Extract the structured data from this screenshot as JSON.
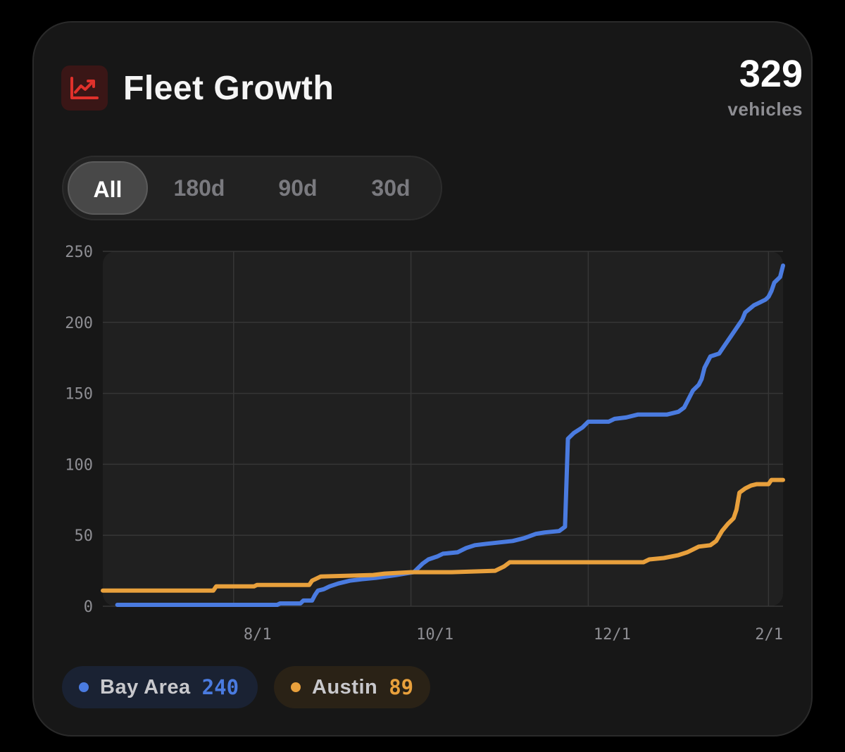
{
  "header": {
    "title": "Fleet Growth",
    "icon": "trend-chart-icon",
    "total_value": "329",
    "total_unit": "vehicles"
  },
  "range_selector": {
    "options": [
      "All",
      "180d",
      "90d",
      "30d"
    ],
    "selected": "All"
  },
  "legend": {
    "items": [
      {
        "name": "Bay Area",
        "value": "240",
        "color": "#4a7be0"
      },
      {
        "name": "Austin",
        "value": "89",
        "color": "#e8a03c"
      }
    ]
  },
  "colors": {
    "background": "#000000",
    "card": "#171717",
    "plot_area": "#202020",
    "grid": "#363636",
    "icon_accent": "#e0312b",
    "bay_area": "#4a7be0",
    "austin": "#e8a03c"
  },
  "chart_data": {
    "type": "line",
    "title": "Fleet Growth",
    "xlabel": "",
    "ylabel": "",
    "x_type": "date",
    "xlim": [
      "2025-06-17",
      "2026-02-06"
    ],
    "ylim": [
      0,
      250
    ],
    "y_ticks": [
      0,
      50,
      100,
      150,
      200,
      250
    ],
    "x_ticks": [
      {
        "date": "2025-08-01",
        "label": "8/1"
      },
      {
        "date": "2025-10-01",
        "label": "10/1"
      },
      {
        "date": "2025-12-01",
        "label": "12/1"
      },
      {
        "date": "2026-02-01",
        "label": "2/1"
      }
    ],
    "grid": true,
    "legend_position": "bottom-left",
    "series": [
      {
        "name": "Bay Area",
        "color": "#4a7be0",
        "step": true,
        "points": [
          [
            "2025-06-22",
            1
          ],
          [
            "2025-08-16",
            1
          ],
          [
            "2025-08-17",
            2
          ],
          [
            "2025-08-24",
            2
          ],
          [
            "2025-08-25",
            4
          ],
          [
            "2025-08-28",
            4
          ],
          [
            "2025-08-29",
            8
          ],
          [
            "2025-08-30",
            11
          ],
          [
            "2025-09-01",
            12
          ],
          [
            "2025-09-03",
            14
          ],
          [
            "2025-09-06",
            16
          ],
          [
            "2025-09-10",
            18
          ],
          [
            "2025-09-14",
            19
          ],
          [
            "2025-09-19",
            20
          ],
          [
            "2025-09-26",
            22
          ],
          [
            "2025-10-02",
            24
          ],
          [
            "2025-10-05",
            30
          ],
          [
            "2025-10-07",
            33
          ],
          [
            "2025-10-10",
            35
          ],
          [
            "2025-10-12",
            37
          ],
          [
            "2025-10-17",
            38
          ],
          [
            "2025-10-20",
            41
          ],
          [
            "2025-10-23",
            43
          ],
          [
            "2025-10-27",
            44
          ],
          [
            "2025-11-05",
            46
          ],
          [
            "2025-11-09",
            48
          ],
          [
            "2025-11-13",
            51
          ],
          [
            "2025-11-16",
            52
          ],
          [
            "2025-11-21",
            53
          ],
          [
            "2025-11-23",
            56
          ],
          [
            "2025-11-24",
            118
          ],
          [
            "2025-11-26",
            122
          ],
          [
            "2025-11-29",
            126
          ],
          [
            "2025-12-01",
            130
          ],
          [
            "2025-12-08",
            130
          ],
          [
            "2025-12-10",
            132
          ],
          [
            "2025-12-14",
            133
          ],
          [
            "2025-12-18",
            135
          ],
          [
            "2025-12-28",
            135
          ],
          [
            "2026-01-01",
            137
          ],
          [
            "2026-01-03",
            140
          ],
          [
            "2026-01-06",
            152
          ],
          [
            "2026-01-08",
            156
          ],
          [
            "2026-01-09",
            160
          ],
          [
            "2026-01-10",
            168
          ],
          [
            "2026-01-12",
            176
          ],
          [
            "2026-01-15",
            178
          ],
          [
            "2026-01-17",
            184
          ],
          [
            "2026-01-19",
            190
          ],
          [
            "2026-01-21",
            196
          ],
          [
            "2026-01-23",
            202
          ],
          [
            "2026-01-24",
            207
          ],
          [
            "2026-01-27",
            212
          ],
          [
            "2026-01-29",
            214
          ],
          [
            "2026-01-31",
            216
          ],
          [
            "2026-02-01",
            218
          ],
          [
            "2026-02-02",
            222
          ],
          [
            "2026-02-03",
            228
          ],
          [
            "2026-02-05",
            232
          ],
          [
            "2026-02-06",
            240
          ]
        ]
      },
      {
        "name": "Austin",
        "color": "#e8a03c",
        "step": true,
        "points": [
          [
            "2025-06-17",
            11
          ],
          [
            "2025-07-25",
            11
          ],
          [
            "2025-07-26",
            14
          ],
          [
            "2025-08-08",
            14
          ],
          [
            "2025-08-09",
            15
          ],
          [
            "2025-08-27",
            15
          ],
          [
            "2025-08-28",
            18
          ],
          [
            "2025-08-31",
            21
          ],
          [
            "2025-09-18",
            22
          ],
          [
            "2025-09-22",
            23
          ],
          [
            "2025-10-01",
            24
          ],
          [
            "2025-10-15",
            24
          ],
          [
            "2025-10-30",
            25
          ],
          [
            "2025-11-02",
            28
          ],
          [
            "2025-11-04",
            31
          ],
          [
            "2025-11-20",
            31
          ],
          [
            "2025-12-08",
            31
          ],
          [
            "2025-12-20",
            31
          ],
          [
            "2025-12-22",
            33
          ],
          [
            "2025-12-27",
            34
          ],
          [
            "2026-01-01",
            36
          ],
          [
            "2026-01-04",
            38
          ],
          [
            "2026-01-06",
            40
          ],
          [
            "2026-01-08",
            42
          ],
          [
            "2026-01-12",
            43
          ],
          [
            "2026-01-14",
            46
          ],
          [
            "2026-01-16",
            53
          ],
          [
            "2026-01-18",
            58
          ],
          [
            "2026-01-20",
            62
          ],
          [
            "2026-01-21",
            68
          ],
          [
            "2026-01-22",
            80
          ],
          [
            "2026-01-24",
            83
          ],
          [
            "2026-01-26",
            85
          ],
          [
            "2026-01-28",
            86
          ],
          [
            "2026-02-01",
            86
          ],
          [
            "2026-02-02",
            89
          ],
          [
            "2026-02-06",
            89
          ]
        ]
      }
    ]
  }
}
